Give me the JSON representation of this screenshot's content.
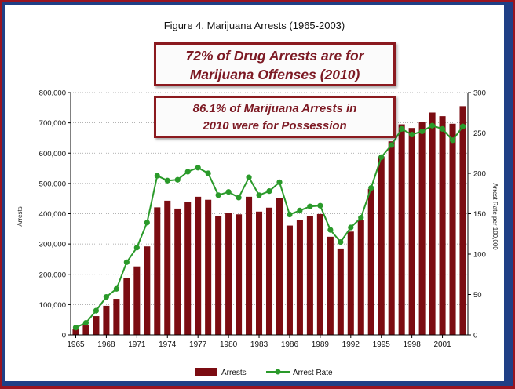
{
  "chart_data": {
    "type": "bar",
    "title": "Figure 4.  Marijuana Arrests (1965-2003)",
    "ylabel": "Arrests",
    "y2label": "Arrest Rate per 100,000",
    "ylim": [
      0,
      800000
    ],
    "y2lim": [
      0,
      300
    ],
    "yticks": [
      "0",
      "100,000",
      "200,000",
      "300,000",
      "400,000",
      "500,000",
      "600,000",
      "700,000",
      "800,000"
    ],
    "y2ticks": [
      "0",
      "50",
      "100",
      "150",
      "200",
      "250",
      "300"
    ],
    "xticks": [
      "1965",
      "1968",
      "1971",
      "1974",
      "1977",
      "1980",
      "1983",
      "1986",
      "1989",
      "1992",
      "1995",
      "1998",
      "2001"
    ],
    "x": [
      1965,
      1966,
      1967,
      1968,
      1969,
      1970,
      1971,
      1972,
      1973,
      1974,
      1975,
      1976,
      1977,
      1978,
      1979,
      1980,
      1981,
      1982,
      1983,
      1984,
      1985,
      1986,
      1987,
      1988,
      1989,
      1990,
      1991,
      1992,
      1993,
      1994,
      1995,
      1996,
      1997,
      1998,
      1999,
      2000,
      2001,
      2002,
      2003
    ],
    "series": [
      {
        "name": "Arrests",
        "type": "bar",
        "color": "#7b0c12",
        "values": [
          18000,
          31000,
          62000,
          96000,
          119000,
          189000,
          226000,
          292000,
          421000,
          443000,
          417000,
          440000,
          456000,
          446000,
          391000,
          402000,
          398000,
          456000,
          407000,
          420000,
          451000,
          361000,
          378000,
          391000,
          399000,
          324000,
          285000,
          341000,
          378000,
          482000,
          589000,
          639000,
          695000,
          683000,
          704000,
          734000,
          722000,
          697000,
          755000
        ]
      },
      {
        "name": "Arrest Rate",
        "type": "line",
        "axis": "right",
        "color": "#2a9a2a",
        "values": [
          9,
          15,
          30,
          47,
          57,
          90,
          108,
          139,
          197,
          191,
          192,
          202,
          207,
          200,
          173,
          177,
          170,
          195,
          173,
          178,
          189,
          149,
          154,
          159,
          160,
          130,
          115,
          133,
          145,
          182,
          220,
          235,
          255,
          248,
          252,
          259,
          255,
          241,
          258
        ]
      }
    ],
    "legend_position": "bottom"
  },
  "callouts": {
    "drug_arrests_line1": "72% of Drug Arrests are for",
    "drug_arrests_line2": "Marijuana Offenses (2010)",
    "possession_line1": "86.1% of Marijuana Arrests in",
    "possession_line2": "2010 were for Possession"
  }
}
